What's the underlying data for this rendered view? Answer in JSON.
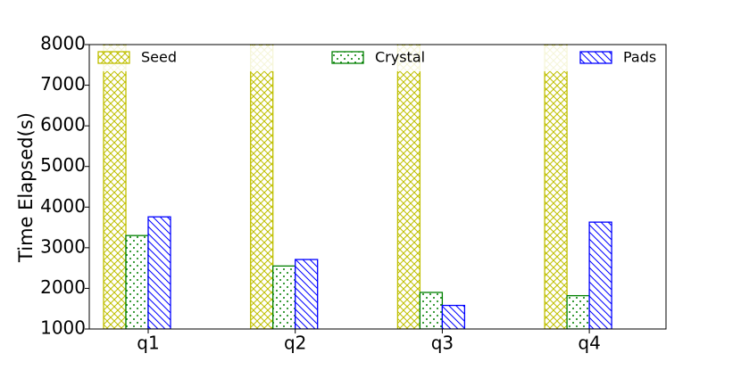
{
  "chart_data": {
    "type": "bar",
    "y_label": "Time Elapsed(s)",
    "categories": [
      "q1",
      "q2",
      "q3",
      "q4"
    ],
    "series": [
      {
        "name": "Seed",
        "color": "#bfbf00",
        "hatch": "xx",
        "values": [
          8000,
          8000,
          8000,
          8000
        ]
      },
      {
        "name": "Crystal",
        "color": "#008000",
        "hatch": "..",
        "values": [
          3300,
          2550,
          1900,
          1820
        ]
      },
      {
        "name": "Pads",
        "color": "#0000ff",
        "hatch": "\\\\",
        "values": [
          3760,
          2710,
          1580,
          3630
        ]
      }
    ],
    "ylim": [
      1000,
      8000
    ],
    "yticks": [
      1000,
      2000,
      3000,
      4000,
      5000,
      6000,
      7000,
      8000
    ],
    "legend": "top"
  }
}
